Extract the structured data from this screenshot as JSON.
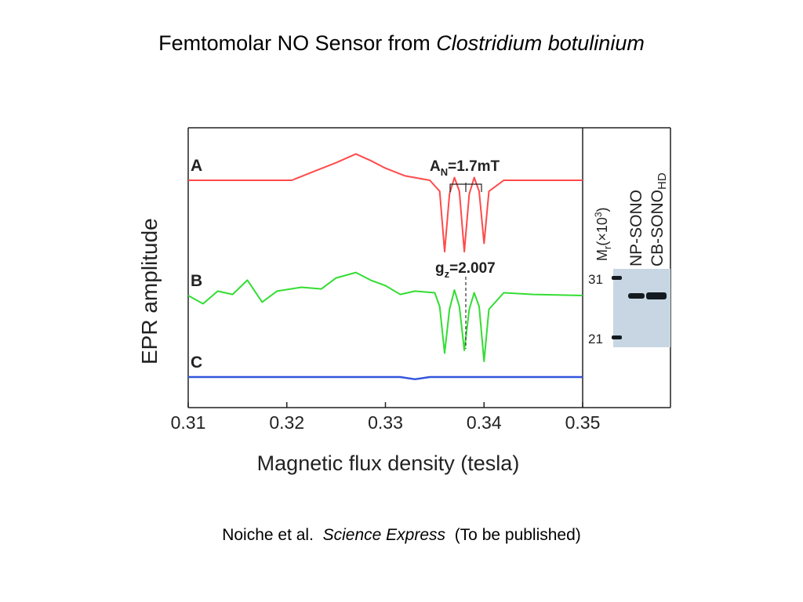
{
  "slide": {
    "title_main": "Femtomolar NO Sensor from ",
    "title_italic": "Clostridium botulinium",
    "citation_authors": "Noiche et al.",
    "citation_journal": "Science Express",
    "citation_note": "(To be published)"
  },
  "chart_data": {
    "type": "line",
    "title": "",
    "xlabel": "Magnetic flux density (tesla)",
    "ylabel": "EPR amplitude",
    "xlim": [
      0.31,
      0.35
    ],
    "x_ticks": [
      "0.31",
      "0.32",
      "0.33",
      "0.34",
      "0.35"
    ],
    "series": [
      {
        "name": "A",
        "color": "#ff4a4a",
        "x": [
          0.31,
          0.316,
          0.3205,
          0.323,
          0.325,
          0.327,
          0.3285,
          0.33,
          0.332,
          0.3345,
          0.3355,
          0.336,
          0.3365,
          0.337,
          0.3375,
          0.338,
          0.3385,
          0.339,
          0.3395,
          0.34,
          0.3405,
          0.342,
          0.35
        ],
        "y": [
          0,
          0,
          0,
          0.18,
          0.32,
          0.48,
          0.36,
          0.22,
          0.08,
          0,
          -0.2,
          -1.3,
          -0.25,
          0.05,
          -0.2,
          -1.3,
          -0.25,
          0.05,
          -0.2,
          -1.15,
          -0.2,
          0,
          0
        ]
      },
      {
        "name": "B",
        "color": "#33dd33",
        "x": [
          0.31,
          0.3115,
          0.313,
          0.3145,
          0.316,
          0.3175,
          0.319,
          0.3215,
          0.3235,
          0.325,
          0.327,
          0.3285,
          0.33,
          0.3315,
          0.333,
          0.335,
          0.3355,
          0.336,
          0.3365,
          0.337,
          0.3375,
          0.338,
          0.3385,
          0.339,
          0.3395,
          0.34,
          0.3405,
          0.342,
          0.345,
          0.35
        ],
        "y": [
          0,
          -0.15,
          0.08,
          0.02,
          0.28,
          -0.12,
          0.08,
          0.15,
          0.12,
          0.32,
          0.42,
          0.28,
          0.18,
          0.02,
          0.08,
          0.05,
          -0.2,
          -1.05,
          -0.25,
          0.1,
          -0.2,
          -1.0,
          -0.25,
          0.05,
          -0.2,
          -1.2,
          -0.25,
          0.05,
          0.02,
          0
        ]
      },
      {
        "name": "C",
        "color": "#3355dd",
        "x": [
          0.31,
          0.325,
          0.3315,
          0.333,
          0.3345,
          0.339,
          0.35
        ],
        "y": [
          0,
          0,
          0,
          -0.04,
          0,
          0,
          0
        ]
      }
    ],
    "annotations": [
      {
        "label": "A",
        "sub": "N",
        "text": "=1.7mT"
      },
      {
        "label": "g",
        "sub": "z",
        "text": "=2.007"
      }
    ],
    "gel_inset": {
      "axis_label": "M",
      "axis_label_sub": "r",
      "axis_label_unit": "(×10",
      "axis_label_exp": "3",
      "axis_label_close": ")",
      "lanes": [
        "NP-SONO",
        "CB-SONO"
      ],
      "lane_suffix": "HD",
      "marker_ticks": [
        "31",
        "21"
      ],
      "colors": {
        "gel_bg": "#c7d6e2",
        "band": "#141a22"
      }
    }
  }
}
